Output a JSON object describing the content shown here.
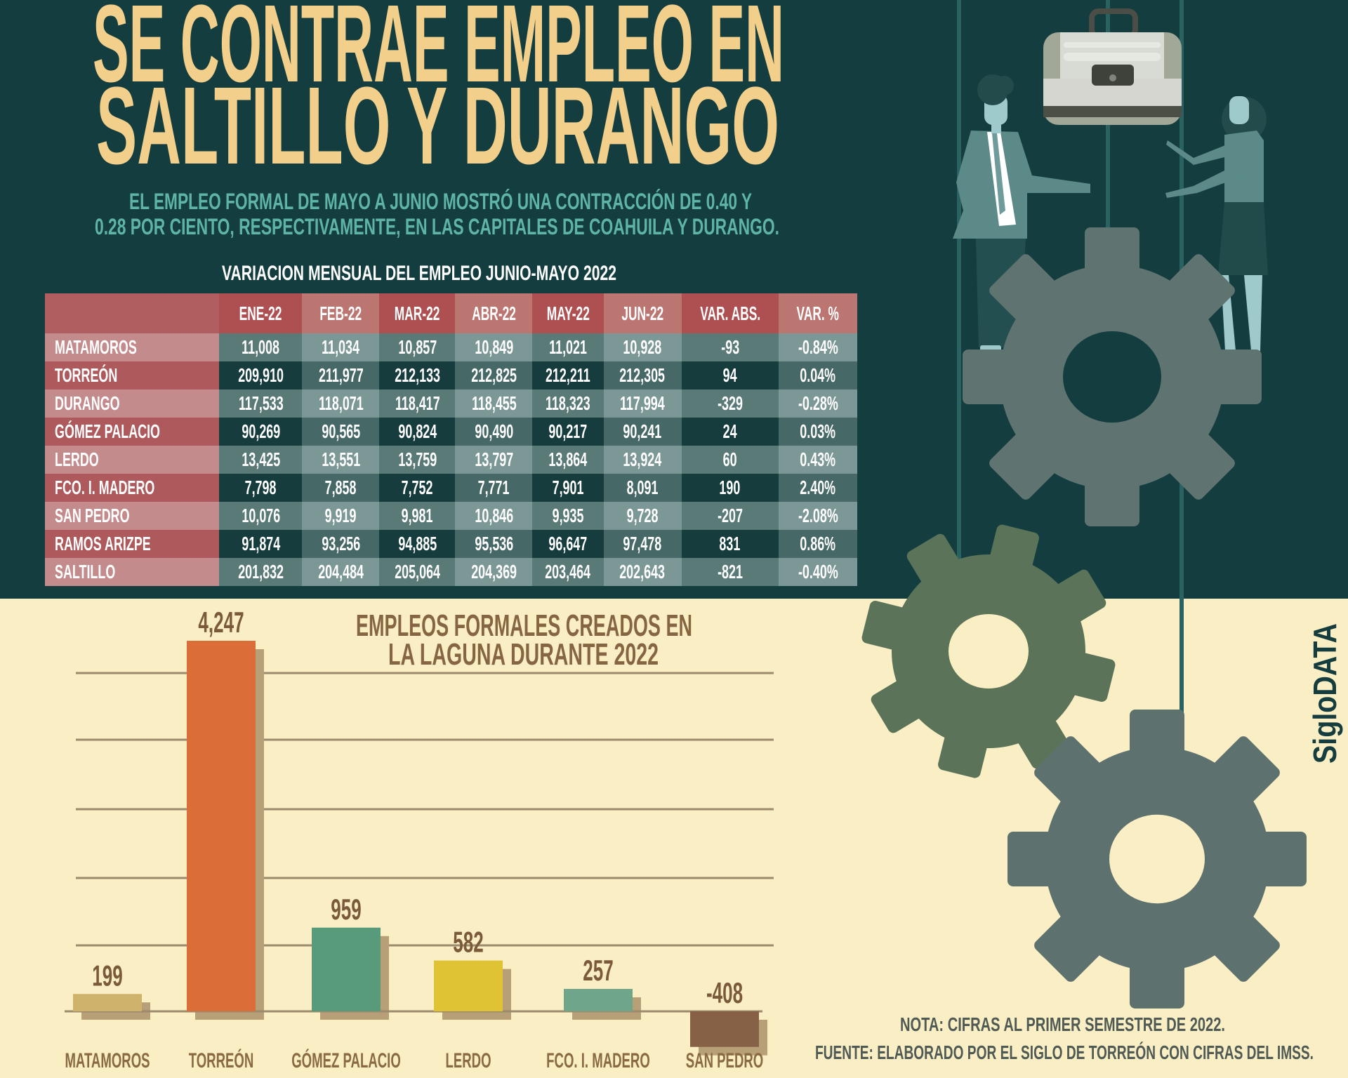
{
  "title": {
    "line1": "SE CONTRAE EMPLEO EN",
    "line2": "SALTILLO Y DURANGO"
  },
  "subtitle": {
    "line1": "EL EMPLEO FORMAL DE MAYO A JUNIO MOSTRÓ UNA CONTRACCIÓN DE 0.40 Y",
    "line2": "0.28 POR CIENTO, RESPECTIVAMENTE, EN LAS CAPITALES DE COAHUILA Y DURANGO."
  },
  "table": {
    "title": "VARIACION MENSUAL DEL EMPLEO JUNIO-MAYO 2022",
    "headers": [
      "",
      "ENE-22",
      "FEB-22",
      "MAR-22",
      "ABR-22",
      "MAY-22",
      "JUN-22",
      "VAR. ABS.",
      "VAR. %"
    ],
    "rows": [
      [
        "MATAMOROS",
        "11,008",
        "11,034",
        "10,857",
        "10,849",
        "11,021",
        "10,928",
        "-93",
        "-0.84%"
      ],
      [
        "TORREÓN",
        "209,910",
        "211,977",
        "212,133",
        "212,825",
        "212,211",
        "212,305",
        "94",
        "0.04%"
      ],
      [
        "DURANGO",
        "117,533",
        "118,071",
        "118,417",
        "118,455",
        "118,323",
        "117,994",
        "-329",
        "-0.28%"
      ],
      [
        "GÓMEZ PALACIO",
        "90,269",
        "90,565",
        "90,824",
        "90,490",
        "90,217",
        "90,241",
        "24",
        "0.03%"
      ],
      [
        "LERDO",
        "13,425",
        "13,551",
        "13,759",
        "13,797",
        "13,864",
        "13,924",
        "60",
        "0.43%"
      ],
      [
        "FCO. I. MADERO",
        "7,798",
        "7,858",
        "7,752",
        "7,771",
        "7,901",
        "8,091",
        "190",
        "2.40%"
      ],
      [
        "SAN PEDRO",
        "10,076",
        "9,919",
        "9,981",
        "10,846",
        "9,935",
        "9,728",
        "-207",
        "-2.08%"
      ],
      [
        "RAMOS ARIZPE",
        "91,874",
        "93,256",
        "94,885",
        "95,536",
        "96,647",
        "97,478",
        "831",
        "0.86%"
      ],
      [
        "SALTILLO",
        "201,832",
        "204,484",
        "205,064",
        "204,369",
        "203,464",
        "202,643",
        "-821",
        "-0.40%"
      ]
    ]
  },
  "chart_data": {
    "type": "bar",
    "title": "EMPLEOS FORMALES CREADOS EN LA LAGUNA DURANTE 2022",
    "title_lines": [
      "EMPLEOS FORMALES CREADOS EN",
      "LA LAGUNA DURANTE 2022"
    ],
    "categories": [
      "MATAMOROS",
      "TORREÓN",
      "GÓMEZ PALACIO",
      "LERDO",
      "FCO. I. MADERO",
      "SAN PEDRO"
    ],
    "values": [
      199,
      4247,
      959,
      582,
      257,
      -408
    ],
    "value_labels": [
      "199",
      "4,247",
      "959",
      "582",
      "257",
      "-408"
    ],
    "colors": [
      "#cfb36c",
      "#db6e38",
      "#589b7b",
      "#e0c235",
      "#6fa58a",
      "#876146"
    ],
    "grid": true,
    "legend": "none"
  },
  "notes": {
    "nota": "NOTA: CIFRAS AL PRIMER SEMESTRE DE 2022.",
    "fuente": "FUENTE: ELABORADO POR EL SIGLO DE TORREÓN CON CIFRAS DEL IMSS."
  },
  "brand": "SigloDATA",
  "colors": {
    "background_top": "#143d3f",
    "background_bottom": "#f9eec4",
    "title": "#f2cf8a",
    "subtitle": "#5fb4a8"
  },
  "icons": [
    "briefcase-icon",
    "businessman-illustration",
    "businesswoman-illustration",
    "gear-icon"
  ]
}
